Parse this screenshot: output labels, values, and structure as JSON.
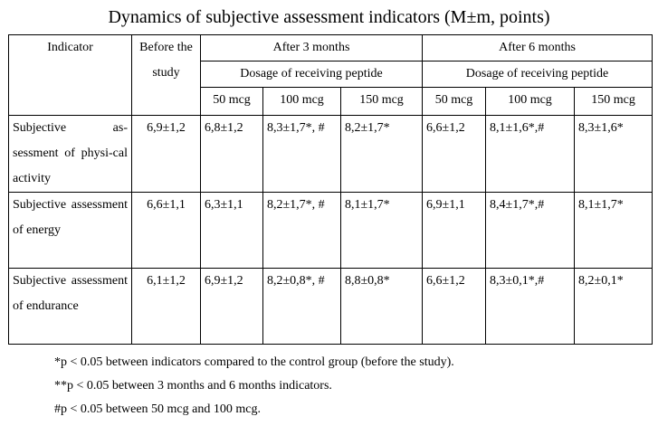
{
  "title": "Dynamics of subjective assessment indicators (M±m, points)",
  "header": {
    "indicator": "Indicator",
    "before": "Before the study",
    "after3": "After 3 months",
    "after6": "After 6 months",
    "dosage3": "Dosage of receiving peptide",
    "dosage6": "Dosage of receiving peptide",
    "doses3": [
      "50 mcg",
      "100 mcg",
      "150 mcg"
    ],
    "doses6": [
      "50 mcg",
      "100 mcg",
      "150 mcg"
    ]
  },
  "rows": [
    {
      "indicator": "Subjective as-sessment of physi-cal activity",
      "before": "6,9±1,2",
      "m3": [
        "6,8±1,2",
        "8,3±1,7*, #",
        "8,2±1,7*"
      ],
      "m6": [
        "6,6±1,2",
        "8,1±1,6*,#",
        "8,3±1,6*"
      ]
    },
    {
      "indicator": "Subjective assessment of energy",
      "before": "6,6±1,1",
      "m3": [
        "6,3±1,1",
        "8,2±1,7*, #",
        "8,1±1,7*"
      ],
      "m6": [
        "6,9±1,1",
        "8,4±1,7*,#",
        "8,1±1,7*"
      ]
    },
    {
      "indicator": "Subjective assessment of endurance",
      "before": "6,1±1,2",
      "m3": [
        "6,9±1,2",
        "8,2±0,8*, #",
        "8,8±0,8*"
      ],
      "m6": [
        "6,6±1,2",
        "8,3±0,1*,#",
        "8,2±0,1*"
      ]
    }
  ],
  "notes": [
    "*p < 0.05 between indicators compared to the control group (before the study).",
    "**p < 0.05 between 3 months and 6 months indicators.",
    "#p < 0.05 between 50 mcg and 100 mcg."
  ]
}
